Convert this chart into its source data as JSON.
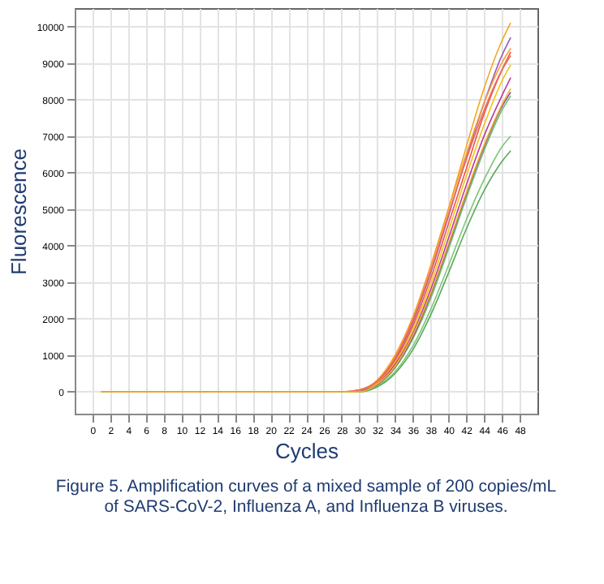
{
  "chart_data": {
    "type": "line",
    "xlabel": "Cycles",
    "ylabel": "Fluorescence",
    "annotations": [
      "Figure 5. Amplification curves of a mixed sample of 200 copies/mL of SARS-CoV-2, Influenza A, and Influenza B viruses."
    ],
    "x": [
      1,
      28,
      30,
      32,
      34,
      36,
      38,
      40,
      42,
      44,
      46,
      47
    ],
    "xlim": [
      -2,
      50
    ],
    "xticks": [
      0,
      2,
      4,
      6,
      8,
      10,
      12,
      14,
      16,
      18,
      20,
      22,
      24,
      26,
      28,
      30,
      32,
      34,
      36,
      38,
      40,
      42,
      44,
      46,
      48
    ],
    "ylim": [
      -600,
      10500
    ],
    "yticks": [
      0,
      1000,
      2000,
      3000,
      4000,
      5000,
      6000,
      7000,
      8000,
      9000,
      10000
    ],
    "grid": true,
    "legend": false,
    "marker": "none",
    "line_style": "solid",
    "series": [
      {
        "color": "#f5a623",
        "values": [
          0,
          0,
          50,
          300,
          950,
          2000,
          3400,
          5000,
          6700,
          8300,
          9600,
          10100
        ]
      },
      {
        "color": "#9b59b6",
        "values": [
          null,
          null,
          50,
          280,
          900,
          1900,
          3250,
          4800,
          6400,
          7900,
          9200,
          9700
        ]
      },
      {
        "color": "#e8574a",
        "values": [
          0,
          0,
          50,
          260,
          850,
          1800,
          3100,
          4600,
          6100,
          7600,
          8800,
          9300
        ]
      },
      {
        "color": "#6abf69",
        "values": [
          0,
          0,
          0,
          180,
          650,
          1450,
          2550,
          3900,
          5300,
          6600,
          7700,
          8100
        ]
      },
      {
        "color": "#f0c419",
        "values": [
          0,
          0,
          50,
          240,
          800,
          1700,
          2950,
          4400,
          5900,
          7300,
          8500,
          8950
        ]
      },
      {
        "color": "#c0399b",
        "values": [
          null,
          null,
          0,
          220,
          750,
          1600,
          2800,
          4200,
          5650,
          7000,
          8100,
          8600
        ]
      },
      {
        "color": "#7cc576",
        "values": [
          0,
          0,
          0,
          150,
          550,
          1250,
          2250,
          3450,
          4700,
          5800,
          6700,
          7000
        ]
      },
      {
        "color": "#f7a035",
        "values": [
          0,
          0,
          50,
          320,
          1000,
          2050,
          3450,
          5000,
          6500,
          7900,
          9000,
          9400
        ]
      },
      {
        "color": "#8e44ad",
        "values": [
          null,
          null,
          0,
          190,
          680,
          1500,
          2650,
          4000,
          5400,
          6700,
          7800,
          8200
        ]
      },
      {
        "color": "#5aa85a",
        "values": [
          0,
          0,
          0,
          130,
          500,
          1150,
          2100,
          3250,
          4450,
          5500,
          6300,
          6600
        ]
      },
      {
        "color": "#ef6a5a",
        "values": [
          0,
          0,
          50,
          290,
          920,
          1950,
          3300,
          4850,
          6350,
          7700,
          8800,
          9200
        ]
      },
      {
        "color": "#e9b824",
        "values": [
          0,
          0,
          0,
          210,
          700,
          1550,
          2700,
          4050,
          5450,
          6750,
          7850,
          8300
        ]
      }
    ]
  }
}
